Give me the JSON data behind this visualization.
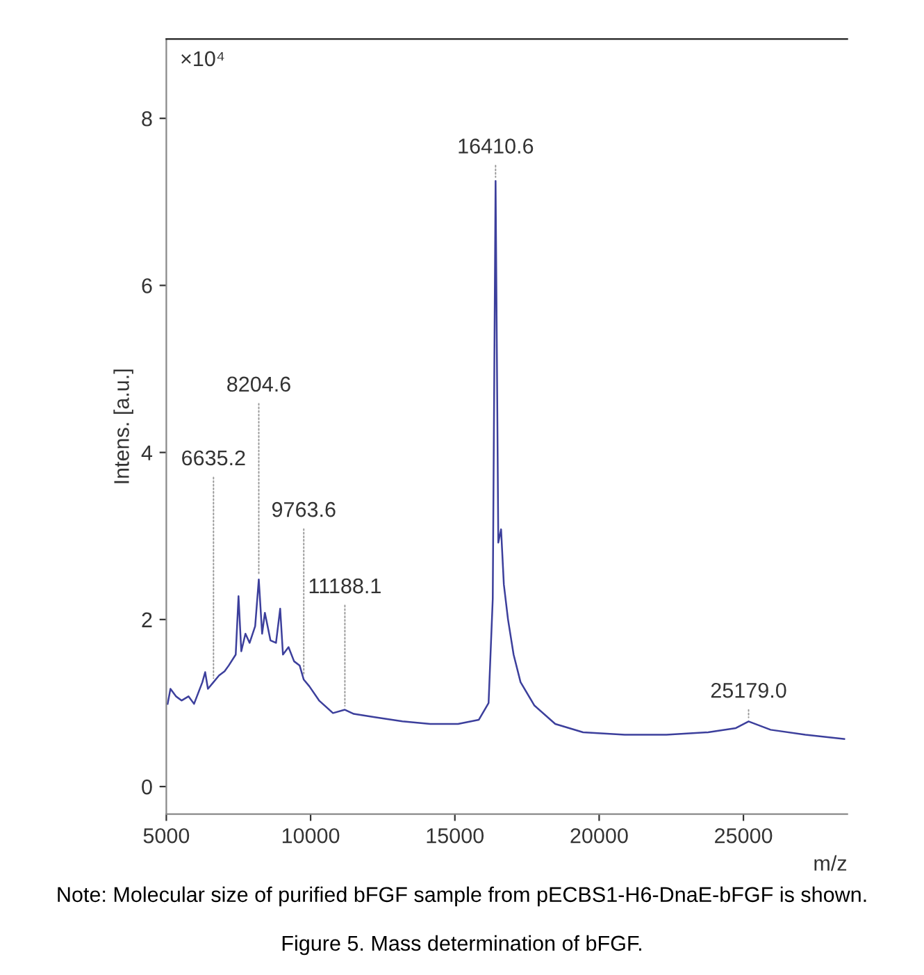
{
  "chart_data": {
    "type": "line",
    "xlabel": "m/z",
    "ylabel": "Intens. [a.u.]",
    "xlim": [
      5000,
      28600
    ],
    "ylim": [
      -0.33,
      8.95
    ],
    "xticks": [
      5000,
      10000,
      15000,
      20000,
      25000
    ],
    "yticks": [
      0,
      2,
      4,
      6,
      8
    ],
    "grid": false,
    "legend": false,
    "marker": "none",
    "line_style": "solid",
    "x": [
      5046,
      5143,
      5335,
      5528,
      5768,
      5961,
      6250,
      6346,
      6442,
      6635,
      6828,
      7020,
      7165,
      7405,
      7502,
      7598,
      7742,
      7887,
      8079,
      8204.6,
      8320,
      8416,
      8609,
      8801,
      8946,
      9042,
      9235,
      9427,
      9620,
      9763.6,
      9957,
      10294,
      10775,
      11188.1,
      11498,
      12220,
      13183,
      14146,
      15109,
      15831,
      16168,
      16313,
      16410.6,
      16505,
      16601,
      16697,
      16842,
      17035,
      17276,
      17757,
      18479,
      19442,
      20887,
      22331,
      23775,
      24738,
      25179.0,
      25942,
      27146,
      28494
    ],
    "series": [
      {
        "color": "#3c3f9c",
        "values": [
          0.99,
          1.17,
          1.08,
          1.03,
          1.08,
          0.99,
          1.25,
          1.37,
          1.17,
          1.25,
          1.33,
          1.38,
          1.45,
          1.58,
          2.28,
          1.62,
          1.83,
          1.72,
          1.92,
          2.48,
          1.83,
          2.08,
          1.75,
          1.72,
          2.13,
          1.58,
          1.67,
          1.5,
          1.45,
          1.28,
          1.2,
          1.03,
          0.88,
          0.92,
          0.87,
          0.83,
          0.78,
          0.75,
          0.75,
          0.8,
          1.0,
          2.25,
          7.25,
          2.92,
          3.08,
          2.42,
          2.0,
          1.58,
          1.25,
          0.97,
          0.75,
          0.65,
          0.62,
          0.62,
          0.65,
          0.7,
          0.78,
          0.68,
          0.62,
          0.57
        ]
      }
    ],
    "annotations": [
      {
        "text": "6635.2",
        "x": 6635.2,
        "y": 1.25
      },
      {
        "text": "8204.6",
        "x": 8204.6,
        "y": 2.48
      },
      {
        "text": "9763.6",
        "x": 9763.6,
        "y": 1.28
      },
      {
        "text": "11188.1",
        "x": 11188.1,
        "y": 0.92
      },
      {
        "text": "16410.6",
        "x": 16410.6,
        "y": 7.25
      },
      {
        "text": "25179.0",
        "x": 25179.0,
        "y": 0.78
      },
      "×10⁴",
      "Note: Molecular size of purified bFGF sample from pECBS1-H6-DnaE-bFGF is shown.",
      "Figure 5. Mass determination of bFGF."
    ]
  }
}
